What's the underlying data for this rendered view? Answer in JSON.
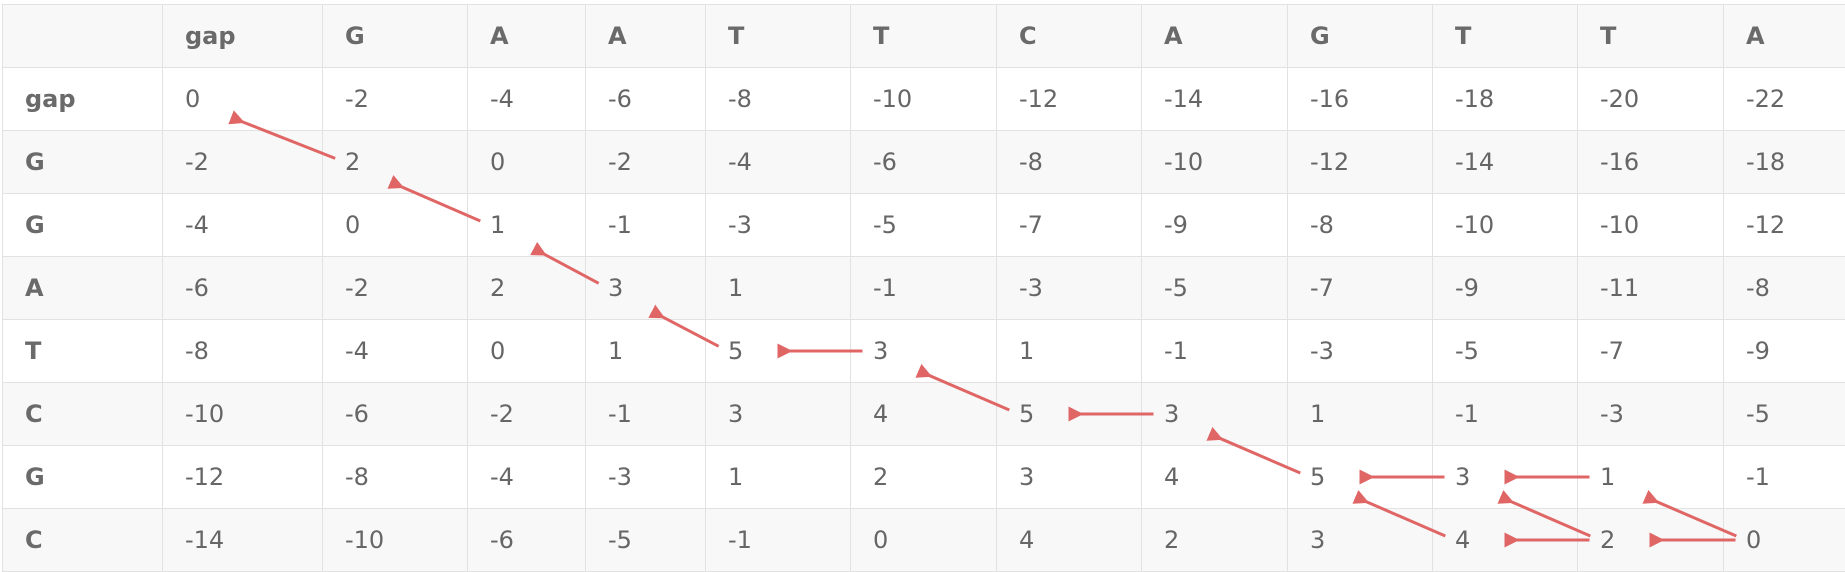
{
  "header": [
    "",
    "gap",
    "G",
    "A",
    "A",
    "T",
    "T",
    "C",
    "A",
    "G",
    "T",
    "T",
    "A"
  ],
  "rows": [
    {
      "label": "gap",
      "cells": [
        "0",
        "-2",
        "-4",
        "-6",
        "-8",
        "-10",
        "-12",
        "-14",
        "-16",
        "-18",
        "-20",
        "-22"
      ]
    },
    {
      "label": "G",
      "cells": [
        "-2",
        "2",
        "0",
        "-2",
        "-4",
        "-6",
        "-8",
        "-10",
        "-12",
        "-14",
        "-16",
        "-18"
      ]
    },
    {
      "label": "G",
      "cells": [
        "-4",
        "0",
        "1",
        "-1",
        "-3",
        "-5",
        "-7",
        "-9",
        "-8",
        "-10",
        "-10",
        "-12"
      ]
    },
    {
      "label": "A",
      "cells": [
        "-6",
        "-2",
        "2",
        "3",
        "1",
        "-1",
        "-3",
        "-5",
        "-7",
        "-9",
        "-11",
        "-8"
      ]
    },
    {
      "label": "T",
      "cells": [
        "-8",
        "-4",
        "0",
        "1",
        "5",
        "3",
        "1",
        "-1",
        "-3",
        "-5",
        "-7",
        "-9"
      ]
    },
    {
      "label": "C",
      "cells": [
        "-10",
        "-6",
        "-2",
        "-1",
        "3",
        "4",
        "5",
        "3",
        "1",
        "-1",
        "-3",
        "-5"
      ]
    },
    {
      "label": "G",
      "cells": [
        "-12",
        "-8",
        "-4",
        "-3",
        "1",
        "2",
        "3",
        "4",
        "5",
        "3",
        "1",
        "-1"
      ]
    },
    {
      "label": "C",
      "cells": [
        "-14",
        "-10",
        "-6",
        "-5",
        "-1",
        "0",
        "4",
        "2",
        "3",
        "4",
        "2",
        "0"
      ]
    }
  ],
  "arrow_color": "#e06666",
  "traceback_arrows": [
    {
      "from": [
        1,
        1
      ],
      "to": [
        0,
        0
      ]
    },
    {
      "from": [
        2,
        2
      ],
      "to": [
        1,
        1
      ]
    },
    {
      "from": [
        3,
        3
      ],
      "to": [
        2,
        2
      ]
    },
    {
      "from": [
        4,
        4
      ],
      "to": [
        3,
        3
      ]
    },
    {
      "from": [
        4,
        5
      ],
      "to": [
        4,
        4
      ]
    },
    {
      "from": [
        5,
        6
      ],
      "to": [
        4,
        5
      ]
    },
    {
      "from": [
        5,
        7
      ],
      "to": [
        5,
        6
      ]
    },
    {
      "from": [
        6,
        8
      ],
      "to": [
        5,
        7
      ]
    },
    {
      "from": [
        6,
        9
      ],
      "to": [
        6,
        8
      ]
    },
    {
      "from": [
        6,
        10
      ],
      "to": [
        6,
        9
      ]
    },
    {
      "from": [
        7,
        11
      ],
      "to": [
        6,
        10
      ]
    },
    {
      "from": [
        7,
        11
      ],
      "to": [
        7,
        10
      ]
    },
    {
      "from": [
        7,
        10
      ],
      "to": [
        7,
        9
      ]
    },
    {
      "from": [
        7,
        10
      ],
      "to": [
        6,
        9
      ]
    },
    {
      "from": [
        7,
        9
      ],
      "to": [
        6,
        8
      ]
    }
  ]
}
